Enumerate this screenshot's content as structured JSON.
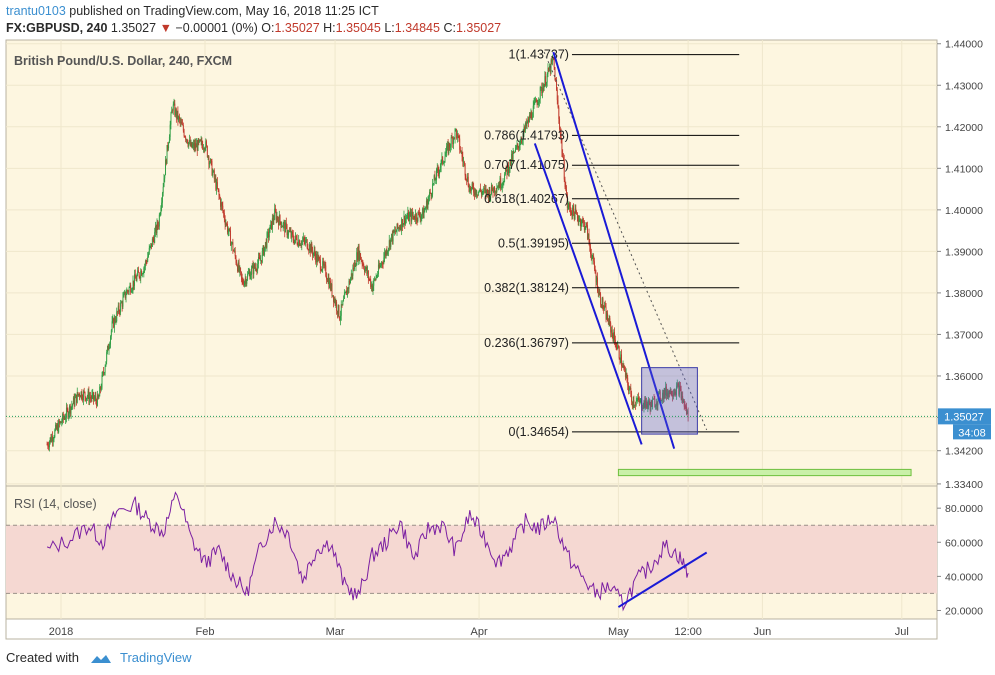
{
  "header": {
    "user": "trantu0103",
    "published_text": "published on TradingView.com, May 16, 2018 11:25 ICT",
    "symbol": "FX:GBPUSD, 240",
    "last": "1.35027",
    "change": "−0.00001 (0%)",
    "o_label": "O:",
    "o_value": "1.35027",
    "h_label": "H:",
    "h_value": "1.35045",
    "l_label": "L:",
    "l_value": "1.34845",
    "c_label": "C:",
    "c_value": "1.35027"
  },
  "footer": {
    "created_with": "Created with",
    "brand": "TradingView"
  },
  "colors": {
    "bg": "#fdf6e0",
    "up": "#2e9e44",
    "down": "#c0392b",
    "fib_line": "#000000",
    "channel": "#1a1ad6",
    "target_zone": "#c9f0a8",
    "rsi_line": "#7b1fa2",
    "rsi_band": "#f5d8d2",
    "price_tag": "#3b8fd0"
  },
  "chart_data": [
    {
      "type": "line",
      "title": "British Pound/U.S. Dollar, 240, FXCM",
      "y_ticks": [
        "1.44000",
        "1.43000",
        "1.42000",
        "1.41000",
        "1.40000",
        "1.39000",
        "1.38000",
        "1.37000",
        "1.36000",
        "1.35000",
        "1.34200",
        "1.33400"
      ],
      "ylim": [
        1.3335,
        1.4409
      ],
      "x_ticks": [
        "2018",
        "Feb",
        "Mar",
        "Apr",
        "May",
        "12:00",
        "Jun",
        "Jul"
      ],
      "x_tick_dates": [
        "2018-01-01",
        "2018-02-01",
        "2018-03-01",
        "2018-04-01",
        "2018-05-01",
        "2018-05-16",
        "2018-06-01",
        "2018-07-01"
      ],
      "series": [
        {
          "x": [
            "2017-12-29",
            "2018-01-05",
            "2018-01-09",
            "2018-01-12",
            "2018-01-15",
            "2018-01-19",
            "2018-01-22",
            "2018-01-25",
            "2018-01-29",
            "2018-02-01",
            "2018-02-05",
            "2018-02-09",
            "2018-02-13",
            "2018-02-16",
            "2018-02-20",
            "2018-02-23",
            "2018-02-27",
            "2018-03-02",
            "2018-03-06",
            "2018-03-09",
            "2018-03-13",
            "2018-03-16",
            "2018-03-20",
            "2018-03-23",
            "2018-03-27",
            "2018-03-30",
            "2018-04-03",
            "2018-04-06",
            "2018-04-10",
            "2018-04-13",
            "2018-04-17",
            "2018-04-20",
            "2018-04-24",
            "2018-04-27",
            "2018-05-01",
            "2018-05-04",
            "2018-05-08",
            "2018-05-11",
            "2018-05-14",
            "2018-05-16"
          ],
          "values": [
            1.3435,
            1.356,
            1.354,
            1.372,
            1.38,
            1.3865,
            1.397,
            1.425,
            1.415,
            1.416,
            1.399,
            1.3825,
            1.388,
            1.399,
            1.393,
            1.392,
            1.385,
            1.3745,
            1.39,
            1.3815,
            1.393,
            1.398,
            1.399,
            1.409,
            1.419,
            1.405,
            1.404,
            1.407,
            1.417,
            1.425,
            1.436,
            1.401,
            1.396,
            1.379,
            1.366,
            1.354,
            1.353,
            1.356,
            1.357,
            1.3503
          ]
        }
      ],
      "fibonacci": [
        {
          "ratio": "1",
          "price": "1.43737"
        },
        {
          "ratio": "0.786",
          "price": "1.41793"
        },
        {
          "ratio": "0.707",
          "price": "1.41075"
        },
        {
          "ratio": "0.618",
          "price": "1.40267"
        },
        {
          "ratio": "0.5",
          "price": "1.39195"
        },
        {
          "ratio": "0.382",
          "price": "1.38124"
        },
        {
          "ratio": "0.236",
          "price": "1.36797"
        },
        {
          "ratio": "0",
          "price": "1.34654"
        }
      ],
      "price_tag": "1.35027",
      "countdown_tag": "34:08",
      "channel": [
        {
          "from": [
            "2018-04-17",
            1.438
          ],
          "to": [
            "2018-05-13",
            1.3425
          ]
        },
        {
          "from": [
            "2018-04-13",
            1.416
          ],
          "to": [
            "2018-05-06",
            1.3435
          ]
        }
      ],
      "trend_line": {
        "from": [
          "2018-04-15",
          1.438
        ],
        "to": [
          "2018-05-20",
          1.347
        ]
      },
      "consolidation_box": {
        "from": [
          "2018-05-06",
          1.362
        ],
        "to": [
          "2018-05-18",
          1.346
        ]
      },
      "target_zone": {
        "from": [
          "2018-05-01",
          1.3375
        ],
        "to": [
          "2018-07-03",
          1.336
        ]
      }
    },
    {
      "type": "line",
      "title": "RSI (14, close)",
      "y_ticks": [
        "80.0000",
        "60.0000",
        "40.0000",
        "20.0000"
      ],
      "ylim": [
        15,
        93
      ],
      "bands": [
        30,
        70
      ],
      "series": [
        {
          "x": [
            "2017-12-29",
            "2018-01-03",
            "2018-01-07",
            "2018-01-10",
            "2018-01-13",
            "2018-01-17",
            "2018-01-20",
            "2018-01-23",
            "2018-01-26",
            "2018-01-29",
            "2018-02-01",
            "2018-02-04",
            "2018-02-07",
            "2018-02-10",
            "2018-02-13",
            "2018-02-16",
            "2018-02-19",
            "2018-02-22",
            "2018-02-25",
            "2018-02-28",
            "2018-03-03",
            "2018-03-06",
            "2018-03-09",
            "2018-03-12",
            "2018-03-15",
            "2018-03-18",
            "2018-03-21",
            "2018-03-24",
            "2018-03-27",
            "2018-03-30",
            "2018-04-02",
            "2018-04-05",
            "2018-04-08",
            "2018-04-11",
            "2018-04-14",
            "2018-04-17",
            "2018-04-20",
            "2018-04-23",
            "2018-04-26",
            "2018-04-29",
            "2018-05-02",
            "2018-05-05",
            "2018-05-08",
            "2018-05-11",
            "2018-05-14",
            "2018-05-16"
          ],
          "values": [
            55,
            62,
            70,
            60,
            78,
            82,
            72,
            66,
            89,
            62,
            48,
            55,
            40,
            30,
            58,
            72,
            65,
            38,
            56,
            60,
            35,
            28,
            52,
            60,
            72,
            50,
            68,
            70,
            55,
            76,
            64,
            48,
            58,
            72,
            68,
            75,
            52,
            40,
            30,
            34,
            24,
            38,
            46,
            58,
            52,
            42
          ]
        }
      ],
      "rsi_trend_line": {
        "from": [
          "2018-05-01",
          22
        ],
        "to": [
          "2018-05-20",
          54
        ]
      }
    }
  ]
}
